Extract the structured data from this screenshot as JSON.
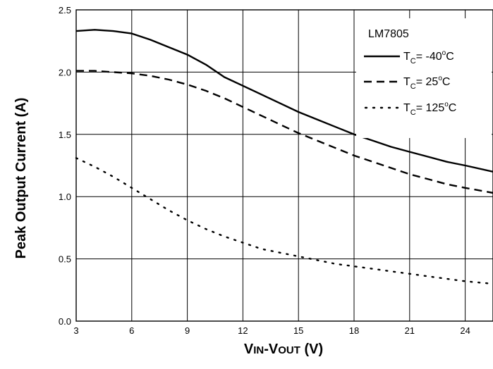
{
  "chart_data": {
    "type": "line",
    "title": "",
    "xlabel": "VIN-VOUT (V)",
    "xlabel_parts": {
      "a": "V",
      "b": "IN",
      "c": "-V",
      "d": "OUT",
      "e": " (V)"
    },
    "ylabel": "Peak Output Current (A)",
    "xlim": [
      3,
      25.5
    ],
    "ylim": [
      0,
      2.5
    ],
    "x_ticks": [
      "3",
      "6",
      "9",
      "12",
      "15",
      "18",
      "21",
      "24"
    ],
    "y_ticks": [
      "0.0",
      "0.5",
      "1.0",
      "1.5",
      "2.0",
      "2.5"
    ],
    "grid": true,
    "legend_position": "top-right",
    "legend": {
      "title": "LM7805",
      "prefix_main": "T",
      "prefix_sub": "C",
      "entries": [
        {
          "text": "= -40",
          "sup": "o",
          "unit": "C"
        },
        {
          "text": "= 25",
          "sup": "o",
          "unit": "C"
        },
        {
          "text": "= 125",
          "sup": "o",
          "unit": "C"
        }
      ]
    },
    "series": [
      {
        "name": "TC = -40°C",
        "style": "solid",
        "x": [
          3,
          4,
          5,
          6,
          7,
          8,
          9,
          10,
          10.5,
          11,
          12,
          13,
          14,
          15,
          16,
          17,
          18,
          19,
          20,
          21,
          22,
          23,
          24,
          25.5
        ],
        "y": [
          2.33,
          2.34,
          2.33,
          2.31,
          2.26,
          2.2,
          2.14,
          2.06,
          2.01,
          1.96,
          1.89,
          1.82,
          1.75,
          1.68,
          1.62,
          1.56,
          1.5,
          1.45,
          1.4,
          1.36,
          1.32,
          1.28,
          1.25,
          1.2
        ]
      },
      {
        "name": "TC = 25°C",
        "style": "dashed",
        "x": [
          3,
          4,
          5,
          6,
          7,
          8,
          9,
          10,
          11,
          12,
          13,
          14,
          15,
          16,
          17,
          18,
          19,
          20,
          21,
          22,
          23,
          24,
          25.5
        ],
        "y": [
          2.01,
          2.01,
          2.0,
          1.99,
          1.97,
          1.94,
          1.9,
          1.85,
          1.79,
          1.72,
          1.65,
          1.58,
          1.51,
          1.45,
          1.39,
          1.33,
          1.28,
          1.23,
          1.18,
          1.14,
          1.1,
          1.07,
          1.03
        ]
      },
      {
        "name": "TC = 125°C",
        "style": "dotted",
        "x": [
          3,
          4,
          5,
          6,
          7,
          8,
          9,
          10,
          11,
          12,
          13,
          14,
          15,
          16,
          17,
          18,
          19,
          20,
          21,
          22,
          23,
          24,
          25.5
        ],
        "y": [
          1.31,
          1.24,
          1.16,
          1.07,
          0.98,
          0.89,
          0.81,
          0.74,
          0.68,
          0.63,
          0.58,
          0.55,
          0.52,
          0.49,
          0.46,
          0.44,
          0.42,
          0.4,
          0.38,
          0.36,
          0.34,
          0.32,
          0.3
        ]
      }
    ]
  }
}
